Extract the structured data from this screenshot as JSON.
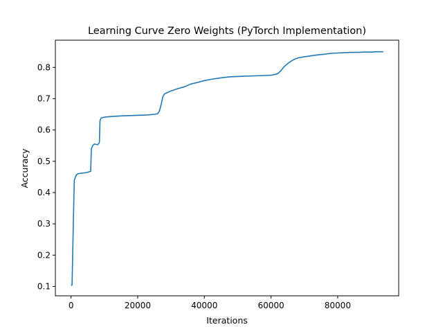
{
  "chart_data": {
    "type": "line",
    "title": "Learning Curve Zero Weights (PyTorch Implementation)",
    "xlabel": "Iterations",
    "ylabel": "Accuracy",
    "xlim": [
      -4700,
      98300
    ],
    "ylim": [
      0.07,
      0.887
    ],
    "xticks": [
      0,
      20000,
      40000,
      60000,
      80000
    ],
    "xtick_labels": [
      "0",
      "20000",
      "40000",
      "60000",
      "80000"
    ],
    "yticks": [
      0.1,
      0.2,
      0.3,
      0.4,
      0.5,
      0.6,
      0.7,
      0.8
    ],
    "ytick_labels": [
      "0.1",
      "0.2",
      "0.3",
      "0.4",
      "0.5",
      "0.6",
      "0.7",
      "0.8"
    ],
    "grid": false,
    "legend": "none",
    "line_color": "#1f77b4",
    "series": [
      {
        "x": [
          0,
          300,
          500,
          800,
          1000,
          1500,
          2000,
          3000,
          4000,
          5000,
          5900,
          6100,
          6500,
          7000,
          8000,
          8500,
          8700,
          9000,
          9500,
          10000,
          12000,
          15000,
          18000,
          20000,
          23000,
          25000,
          26000,
          26500,
          27000,
          27500,
          28000,
          29000,
          30000,
          32000,
          34000,
          36000,
          38000,
          40000,
          42000,
          44000,
          46000,
          48000,
          50000,
          52000,
          55000,
          58000,
          60000,
          61000,
          62000,
          63000,
          64000,
          65000,
          66000,
          67000,
          68000,
          70000,
          72000,
          74000,
          76000,
          78000,
          80000,
          82000,
          84000,
          86000,
          88000,
          90000,
          92000,
          93700
        ],
        "values": [
          0.104,
          0.104,
          0.2,
          0.36,
          0.44,
          0.455,
          0.46,
          0.462,
          0.463,
          0.465,
          0.468,
          0.54,
          0.55,
          0.555,
          0.553,
          0.56,
          0.63,
          0.638,
          0.64,
          0.641,
          0.643,
          0.645,
          0.646,
          0.647,
          0.648,
          0.65,
          0.652,
          0.66,
          0.68,
          0.705,
          0.715,
          0.72,
          0.725,
          0.732,
          0.738,
          0.747,
          0.752,
          0.758,
          0.762,
          0.765,
          0.768,
          0.77,
          0.771,
          0.772,
          0.773,
          0.774,
          0.775,
          0.777,
          0.78,
          0.79,
          0.803,
          0.812,
          0.82,
          0.826,
          0.83,
          0.834,
          0.837,
          0.84,
          0.842,
          0.845,
          0.846,
          0.847,
          0.848,
          0.848,
          0.849,
          0.849,
          0.85,
          0.85
        ]
      }
    ]
  }
}
